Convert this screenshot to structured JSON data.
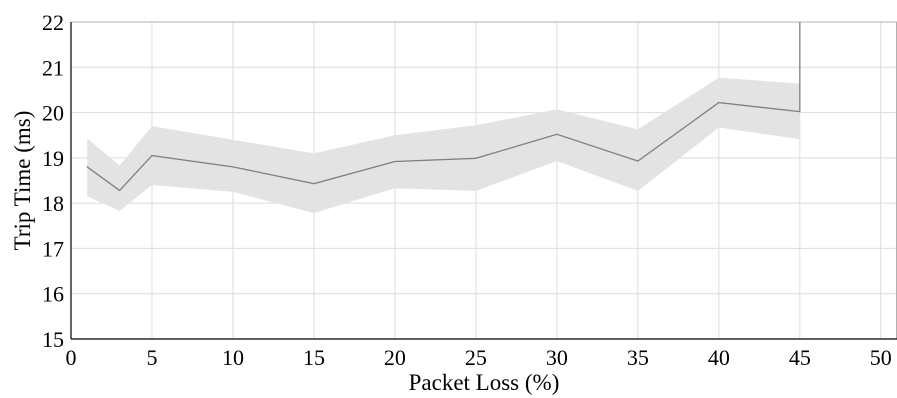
{
  "chart_data": {
    "type": "line",
    "title": "",
    "xlabel": "Packet Loss (%)",
    "ylabel": "Trip Time (ms)",
    "xlim": [
      0,
      51
    ],
    "ylim": [
      15,
      22
    ],
    "xticks": [
      0,
      5,
      10,
      15,
      20,
      25,
      30,
      35,
      40,
      45,
      50
    ],
    "yticks": [
      15,
      16,
      17,
      18,
      19,
      20,
      21,
      22
    ],
    "grid": true,
    "legend": "none",
    "series": [
      {
        "x": [
          1,
          3,
          5,
          10,
          15,
          20,
          25,
          30,
          35,
          40,
          45
        ],
        "values": [
          18.8,
          18.28,
          19.05,
          18.8,
          18.43,
          18.92,
          18.99,
          19.52,
          18.93,
          20.22,
          20.02
        ],
        "lower": [
          18.15,
          17.83,
          18.4,
          18.25,
          17.78,
          18.33,
          18.27,
          18.93,
          18.27,
          19.67,
          19.41
        ],
        "upper": [
          19.43,
          18.83,
          19.7,
          19.4,
          19.1,
          19.5,
          19.72,
          20.07,
          19.63,
          20.77,
          20.64
        ],
        "color": "#808080",
        "band_color": "#e3e3e3"
      }
    ]
  }
}
